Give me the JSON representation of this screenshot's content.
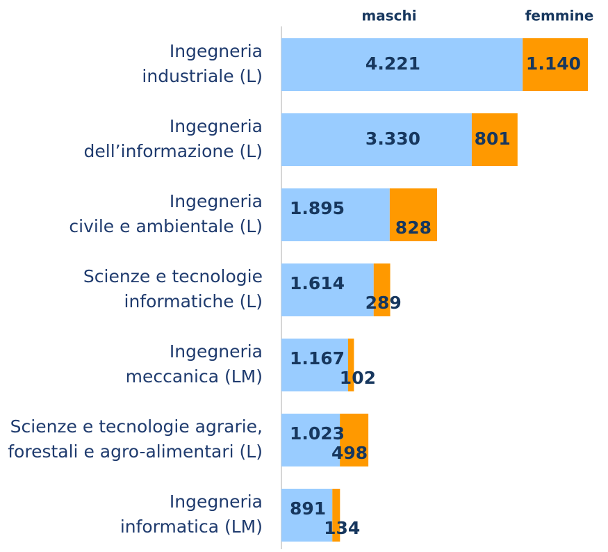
{
  "chart_data": {
    "type": "stacked-bar-horizontal",
    "categories": [
      [
        "Ingegneria",
        "industriale (L)"
      ],
      [
        "Ingegneria",
        "dell’informazione (L)"
      ],
      [
        "Ingegneria",
        "civile e ambientale (L)"
      ],
      [
        "Scienze e tecnologie",
        "informatiche (L)"
      ],
      [
        "Ingegneria",
        "meccanica (LM)"
      ],
      [
        "Scienze e tecnologie agrarie,",
        "forestali e agro-alimentari (L)"
      ],
      [
        "Ingegneria",
        "informatica (LM)"
      ]
    ],
    "series": [
      {
        "name": "maschi",
        "color": "#99ccff",
        "values": [
          4221,
          3330,
          1895,
          1614,
          1167,
          1023,
          891
        ],
        "value_labels": [
          "4.221",
          "3.330",
          "1.895",
          "1.614",
          "1.167",
          "1.023",
          "891"
        ]
      },
      {
        "name": "femmine",
        "color": "#ff9900",
        "values": [
          1140,
          801,
          828,
          289,
          102,
          498,
          134
        ],
        "value_labels": [
          "1.140",
          "801",
          "828",
          "289",
          "102",
          "498",
          "134"
        ]
      }
    ]
  }
}
